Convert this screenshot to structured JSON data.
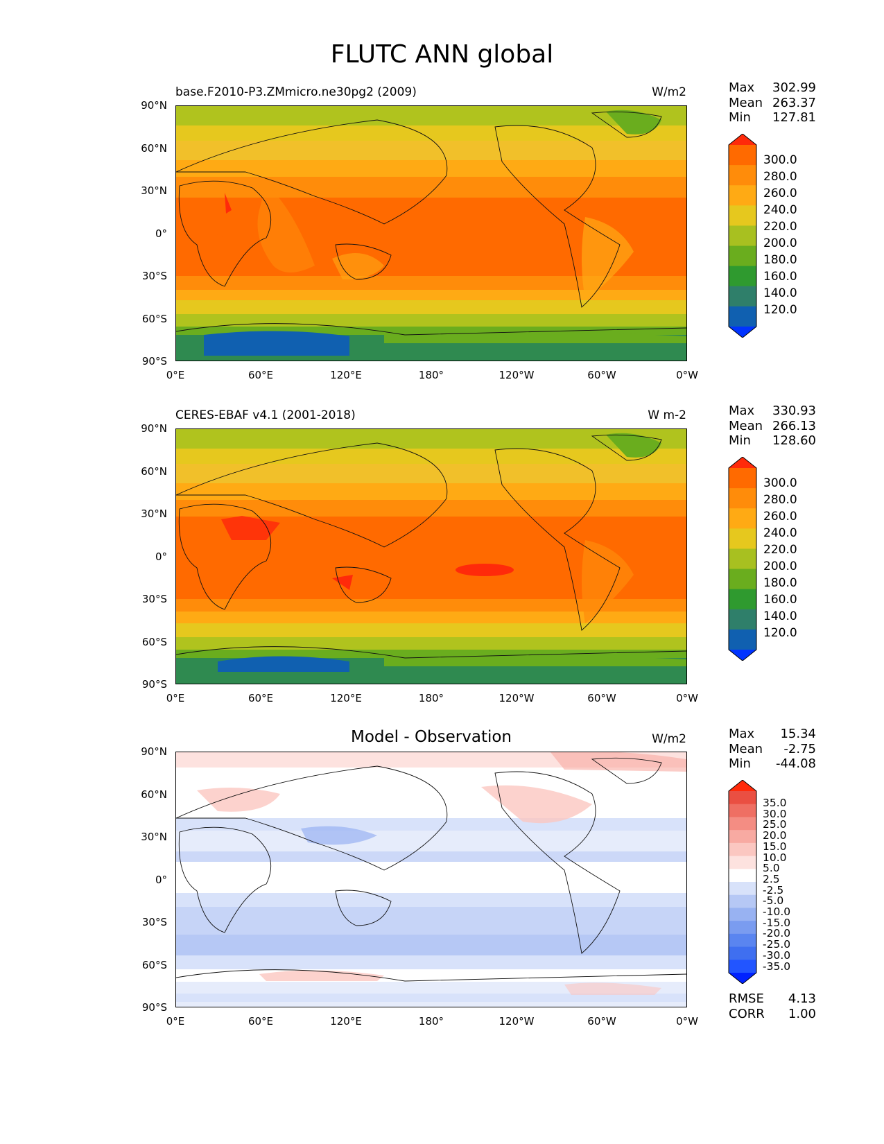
{
  "figure_title": "FLUTC ANN global",
  "panels": [
    {
      "title": "base.F2010-P3.ZMmicro.ne30pg2 (2009)",
      "units": "W/m2",
      "stats": {
        "max_label": "Max",
        "max": "302.99",
        "mean_label": "Mean",
        "mean": "263.37",
        "min_label": "Min",
        "min": "127.81"
      },
      "colorbar_levels": [
        "300.0",
        "280.0",
        "260.0",
        "240.0",
        "220.0",
        "200.0",
        "180.0",
        "160.0",
        "140.0",
        "120.0"
      ]
    },
    {
      "title": "CERES-EBAF v4.1 (2001-2018)",
      "units": "W m-2",
      "stats": {
        "max_label": "Max",
        "max": "330.93",
        "mean_label": "Mean",
        "mean": "266.13",
        "min_label": "Min",
        "min": "128.60"
      },
      "colorbar_levels": [
        "300.0",
        "280.0",
        "260.0",
        "240.0",
        "220.0",
        "200.0",
        "180.0",
        "160.0",
        "140.0",
        "120.0"
      ]
    },
    {
      "title": "Model - Observation",
      "units": "W/m2",
      "stats": {
        "max_label": "Max",
        "max": "15.34",
        "mean_label": "Mean",
        "mean": "-2.75",
        "min_label": "Min",
        "min": "-44.08"
      },
      "colorbar_levels": [
        "35.0",
        "30.0",
        "25.0",
        "20.0",
        "15.0",
        "10.0",
        "5.0",
        "2.5",
        "-2.5",
        "-5.0",
        "-10.0",
        "-15.0",
        "-20.0",
        "-25.0",
        "-30.0",
        "-35.0"
      ],
      "metrics": {
        "rmse_label": "RMSE",
        "rmse": "4.13",
        "corr_label": "CORR",
        "corr": "1.00"
      }
    }
  ],
  "axes": {
    "y_ticks": [
      "90°N",
      "60°N",
      "30°N",
      "0°",
      "30°S",
      "60°S",
      "90°S"
    ],
    "x_ticks": [
      "0°E",
      "60°E",
      "120°E",
      "180°",
      "120°W",
      "60°W",
      "0°W"
    ]
  },
  "colors": {
    "abs_scale": [
      "#0033ff",
      "#1060b0",
      "#2f7f6a",
      "#2f9a2f",
      "#6aad1e",
      "#a8c020",
      "#e6c81e",
      "#ffaa14",
      "#ff8c0a",
      "#ff6a00",
      "#ff2a0a"
    ],
    "diff_scale": [
      "#0022ff",
      "#2255ff",
      "#3f6ff0",
      "#5a85f0",
      "#7a9cf0",
      "#98b2f2",
      "#b6c8f5",
      "#d8e2fa",
      "#ffffff",
      "#fde2df",
      "#fbc7c1",
      "#f8aaa2",
      "#f48d83",
      "#ef6f63",
      "#ea4f42",
      "#ff2a0a"
    ]
  }
}
